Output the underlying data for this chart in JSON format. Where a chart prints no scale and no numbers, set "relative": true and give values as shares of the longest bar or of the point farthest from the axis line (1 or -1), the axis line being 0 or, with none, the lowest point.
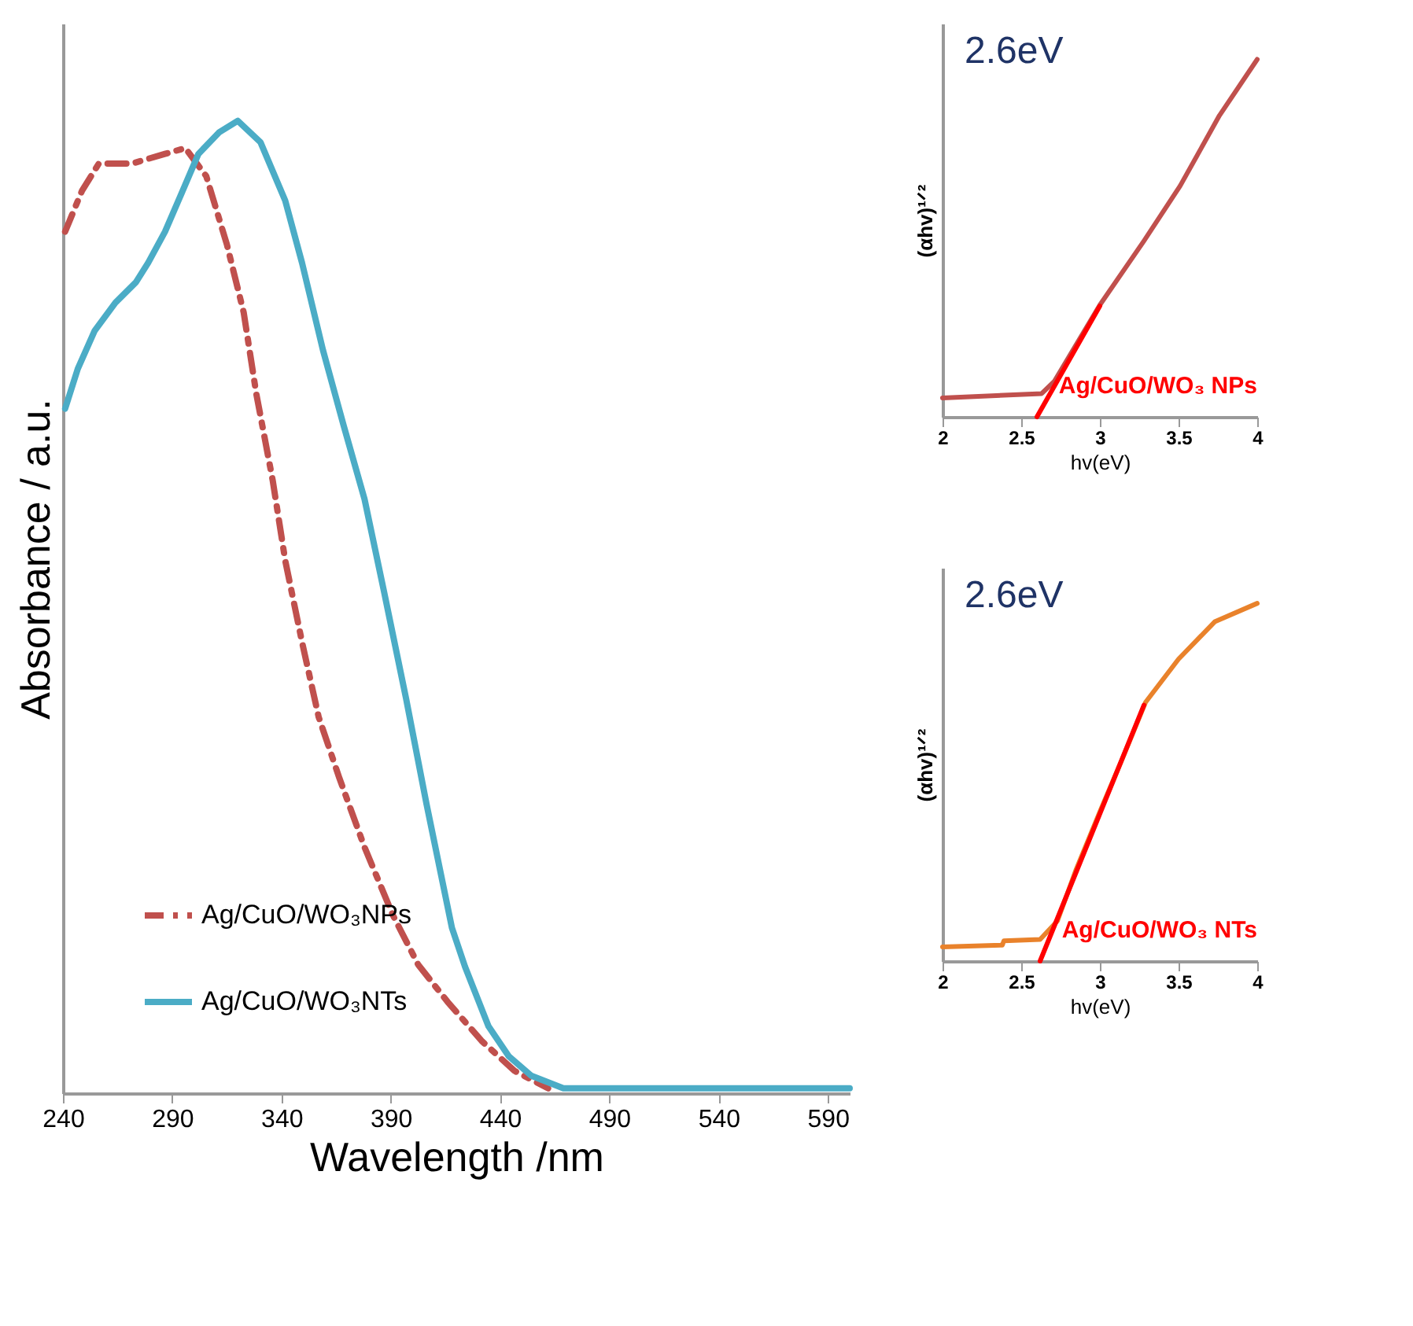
{
  "chart_data": [
    {
      "type": "line",
      "xlabel": "Wavelength /nm",
      "ylabel": "Absorbance / a.u.",
      "relative": true,
      "xlim": [
        240,
        600
      ],
      "xticks": [
        240,
        290,
        340,
        390,
        440,
        490,
        540,
        590
      ],
      "grid": false,
      "legend": "bottom left",
      "series": [
        {
          "name": "Ag/CuO/WO₃NPs",
          "color": "#c0504d",
          "line_style": "dashed",
          "x": [
            241,
            248.7,
            256.4,
            271.5,
            286.7,
            296,
            305.6,
            315,
            322.7,
            328.5,
            336,
            341.7,
            349.4,
            357,
            366.5,
            378,
            391,
            402.6,
            416,
            431.5,
            446.6,
            462
          ],
          "values": [
            0.886,
            0.928,
            0.956,
            0.956,
            0.966,
            0.972,
            0.943,
            0.873,
            0.803,
            0.719,
            0.63,
            0.548,
            0.464,
            0.387,
            0.324,
            0.253,
            0.183,
            0.132,
            0.094,
            0.054,
            0.023,
            0.005
          ]
        },
        {
          "name": "Ag/CuO/WO₃NTs",
          "color": "#4bacc6",
          "line_style": "solid",
          "x": [
            241,
            246.8,
            254.5,
            264,
            273.4,
            279,
            286.7,
            294,
            302,
            311.4,
            320,
            330.4,
            341.7,
            349.4,
            359,
            368.4,
            378,
            387,
            397,
            406.4,
            418,
            424,
            434.7,
            444,
            454.3,
            469,
            500,
            550,
            600
          ],
          "values": [
            0.704,
            0.745,
            0.784,
            0.813,
            0.834,
            0.854,
            0.886,
            0.924,
            0.966,
            0.988,
            1,
            0.978,
            0.918,
            0.854,
            0.764,
            0.687,
            0.611,
            0.515,
            0.406,
            0.297,
            0.17,
            0.13,
            0.069,
            0.038,
            0.018,
            0.005,
            0.005,
            0.005,
            0.005
          ]
        }
      ]
    },
    {
      "type": "line",
      "xlabel": "hv(eV)",
      "ylabel": "(αhv)¹ᐟ²",
      "relative": true,
      "xlim": [
        2,
        4
      ],
      "xticks": [
        2,
        2.5,
        3,
        3.5,
        4
      ],
      "grid": false,
      "annotations": [
        "2.6eV",
        "Ag/CuO/WO₃ NPs"
      ],
      "series": [
        {
          "color": "#c0504d",
          "line_style": "solid",
          "x": [
            2,
            2.63,
            2.71,
            3.0,
            3.28,
            3.51,
            3.76,
            4
          ],
          "values": [
            0.053,
            0.065,
            0.099,
            0.313,
            0.492,
            0.646,
            0.843,
            1
          ]
        },
        {
          "type": "line",
          "color": "#ff0000",
          "line_style": "solid",
          "x": [
            2.6,
            3.0
          ],
          "values": [
            0.0,
            0.31
          ]
        }
      ]
    },
    {
      "type": "line",
      "xlabel": "hv(eV)",
      "ylabel": "(αhv)¹ᐟ²",
      "relative": true,
      "xlim": [
        2,
        4
      ],
      "xticks": [
        2,
        2.5,
        3,
        3.5,
        4
      ],
      "grid": false,
      "annotations": [
        "2.6eV",
        "Ag/CuO/WO₃ NTs"
      ],
      "series": [
        {
          "color": "#e9822b",
          "line_style": "solid",
          "x": [
            2,
            2.38,
            2.39,
            2.62,
            2.73,
            2.85,
            3.0,
            3.14,
            3.29,
            3.5,
            3.73,
            4
          ],
          "values": [
            0.032,
            0.037,
            0.049,
            0.053,
            0.105,
            0.251,
            0.413,
            0.559,
            0.721,
            0.843,
            0.948,
            1
          ]
        },
        {
          "type": "line",
          "color": "#ff0000",
          "line_style": "solid",
          "x": [
            2.62,
            3.28
          ],
          "values": [
            -0.008,
            0.713
          ]
        }
      ]
    }
  ]
}
